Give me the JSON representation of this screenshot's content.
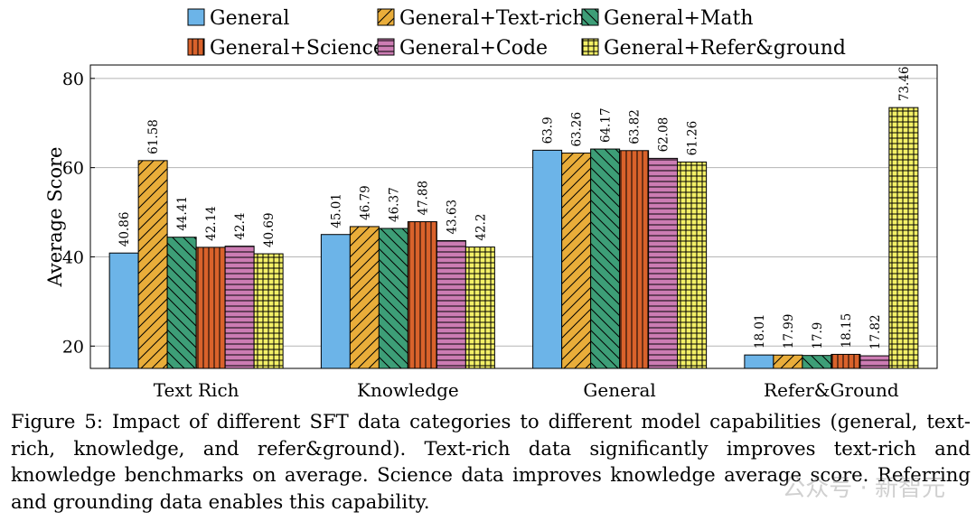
{
  "chart_data": {
    "type": "bar",
    "categories": [
      "Text Rich",
      "Knowledge",
      "General",
      "Refer&Ground"
    ],
    "series": [
      {
        "name": "General",
        "values": [
          40.86,
          45.01,
          63.9,
          18.01
        ],
        "color": "#6cb4e8",
        "pattern": "solid"
      },
      {
        "name": "General+Text-rich",
        "values": [
          61.58,
          46.79,
          63.26,
          17.99
        ],
        "color": "#e9ad3a",
        "pattern": "diagonal-up"
      },
      {
        "name": "General+Math",
        "values": [
          44.41,
          46.37,
          64.17,
          17.9
        ],
        "color": "#3d9e77",
        "pattern": "diagonal-down"
      },
      {
        "name": "General+Science",
        "values": [
          42.14,
          47.88,
          63.82,
          18.15
        ],
        "color": "#d9622b",
        "pattern": "vertical-lines"
      },
      {
        "name": "General+Code",
        "values": [
          42.4,
          43.63,
          62.08,
          17.82
        ],
        "color": "#cc7cb3",
        "pattern": "horizontal-lines"
      },
      {
        "name": "General+Refer&ground",
        "values": [
          40.69,
          42.2,
          61.26,
          73.46
        ],
        "color": "#f3f067",
        "pattern": "grid"
      }
    ],
    "data_labels": [
      [
        "40.86",
        "61.58",
        "44.41",
        "42.14",
        "42.4",
        "40.69"
      ],
      [
        "45.01",
        "46.79",
        "46.37",
        "47.88",
        "43.63",
        "42.2"
      ],
      [
        "63.9",
        "63.26",
        "64.17",
        "63.82",
        "62.08",
        "61.26"
      ],
      [
        "18.01",
        "17.99",
        "17.9",
        "18.15",
        "17.82",
        "73.46"
      ]
    ],
    "ylabel": "Average Score",
    "ylim": [
      15,
      83
    ],
    "yticks": [
      20,
      40,
      60,
      80
    ],
    "grid": true,
    "legend_position": "top"
  },
  "caption": "Figure 5: Impact of different SFT data categories to different model capabilities (general, text-rich, knowledge, and refer&ground). Text-rich data significantly improves text-rich and knowledge benchmarks on average. Science data improves knowledge average score. Referring and grounding data enables this capability.",
  "watermark": "公众号 · 新智元"
}
